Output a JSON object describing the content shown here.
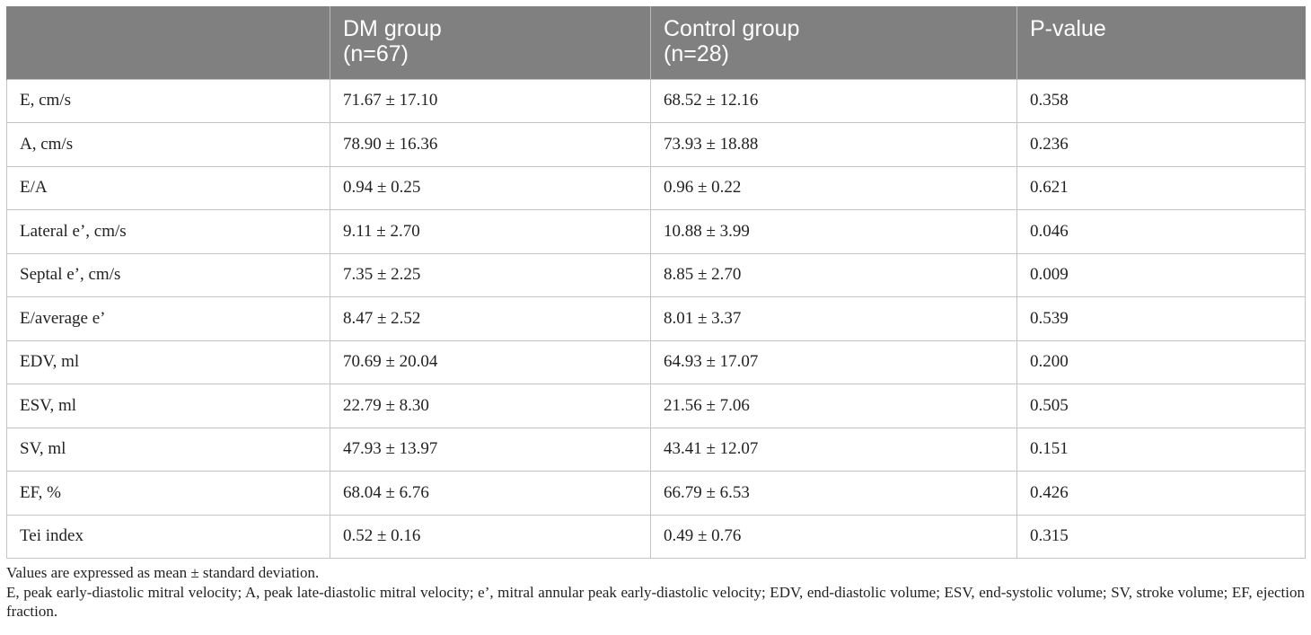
{
  "table": {
    "columns": [
      {
        "line1": "",
        "line2": ""
      },
      {
        "line1": "DM group",
        "line2": "(n=67)"
      },
      {
        "line1": "Control group",
        "line2": "(n=28)"
      },
      {
        "line1": "P-value",
        "line2": ""
      }
    ],
    "rows": [
      {
        "label": "E, cm/s",
        "dm": "71.67 ± 17.10",
        "control": "68.52 ± 12.16",
        "p": "0.358"
      },
      {
        "label": "A, cm/s",
        "dm": "78.90 ± 16.36",
        "control": "73.93 ± 18.88",
        "p": "0.236"
      },
      {
        "label": "E/A",
        "dm": "0.94 ± 0.25",
        "control": "0.96 ± 0.22",
        "p": "0.621"
      },
      {
        "label": "Lateral e’, cm/s",
        "dm": "9.11 ± 2.70",
        "control": "10.88 ± 3.99",
        "p": "0.046"
      },
      {
        "label": "Septal e’, cm/s",
        "dm": "7.35 ± 2.25",
        "control": "8.85 ± 2.70",
        "p": "0.009"
      },
      {
        "label": "E/average e’",
        "dm": "8.47 ± 2.52",
        "control": "8.01 ± 3.37",
        "p": "0.539"
      },
      {
        "label": "EDV, ml",
        "dm": "70.69 ± 20.04",
        "control": "64.93 ± 17.07",
        "p": "0.200"
      },
      {
        "label": "ESV, ml",
        "dm": "22.79 ± 8.30",
        "control": "21.56 ± 7.06",
        "p": "0.505"
      },
      {
        "label": "SV, ml",
        "dm": "47.93 ± 13.97",
        "control": "43.41 ± 12.07",
        "p": "0.151"
      },
      {
        "label": "EF, %",
        "dm": "68.04 ± 6.76",
        "control": "66.79 ± 6.53",
        "p": "0.426"
      },
      {
        "label": "Tei index",
        "dm": "0.52 ± 0.16",
        "control": "0.49 ± 0.76",
        "p": "0.315"
      }
    ]
  },
  "footnotes": {
    "values_note": "Values are expressed as mean ± standard deviation.",
    "abbreviations": "E, peak early-diastolic mitral velocity; A, peak late-diastolic mitral velocity; e’, mitral annular peak early-diastolic velocity; EDV, end-diastolic volume; ESV, end-systolic volume; SV, stroke volume; EF, ejection fraction."
  },
  "colors": {
    "header_background": "#808080",
    "header_text": "#ffffff",
    "grid_line": "#c4c4c4",
    "body_text": "#222222"
  }
}
